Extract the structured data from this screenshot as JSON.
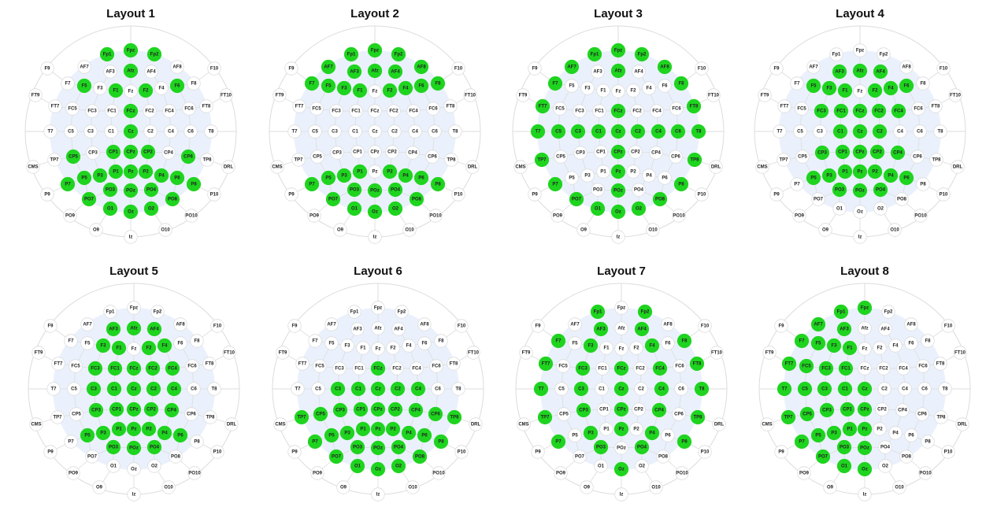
{
  "colors": {
    "active": "#1fd41f",
    "inactive": "#ffffff",
    "cap_fill": "#eaf1fc",
    "line": "#dcdcdc"
  },
  "electrodes": [
    "Fp1",
    "Fpz",
    "Fp2",
    "AF7",
    "AF3",
    "Afz",
    "AF4",
    "AF8",
    "F9",
    "F7",
    "F5",
    "F3",
    "F1",
    "Fz",
    "F2",
    "F4",
    "F6",
    "F8",
    "F10",
    "FT9",
    "FT7",
    "FC5",
    "FC3",
    "FC1",
    "FCz",
    "FC2",
    "FC4",
    "FC6",
    "FT8",
    "FT10",
    "T7",
    "C5",
    "C3",
    "C1",
    "Cz",
    "C2",
    "C4",
    "C6",
    "T8",
    "CMS",
    "TP7",
    "CP5",
    "CP3",
    "CP1",
    "CPz",
    "CP2",
    "CP4",
    "CP6",
    "TP8",
    "DRL",
    "P9",
    "P7",
    "P5",
    "P3",
    "P1",
    "Pz",
    "P2",
    "P4",
    "P6",
    "P8",
    "P10",
    "PO9",
    "PO7",
    "PO3",
    "POz",
    "PO4",
    "PO8",
    "PO10",
    "O9",
    "O1",
    "Oz",
    "O2",
    "O10",
    "Iz"
  ],
  "layouts": [
    {
      "title": "Layout 1",
      "active": [
        "Fp1",
        "Fpz",
        "Fp2",
        "Afz",
        "F5",
        "F1",
        "F2",
        "F6",
        "FCz",
        "Cz",
        "CP5",
        "CP1",
        "CPz",
        "CP2",
        "CP6",
        "P7",
        "P5",
        "P3",
        "P1",
        "Pz",
        "P2",
        "P4",
        "P6",
        "P8",
        "PO7",
        "PO3",
        "POz",
        "PO4",
        "PO8",
        "O1",
        "Oz",
        "O2"
      ]
    },
    {
      "title": "Layout 2",
      "active": [
        "Fp1",
        "Fpz",
        "Fp2",
        "AF7",
        "AF3",
        "Afz",
        "AF4",
        "AF8",
        "F7",
        "F5",
        "F3",
        "F1",
        "F2",
        "F4",
        "F6",
        "F8",
        "P7",
        "P5",
        "P3",
        "P1",
        "P2",
        "P4",
        "P6",
        "P8",
        "PO7",
        "PO3",
        "POz",
        "PO4",
        "PO8",
        "O1",
        "Oz",
        "O2"
      ]
    },
    {
      "title": "Layout 3",
      "active": [
        "Fp1",
        "Fpz",
        "Fp2",
        "AF7",
        "Afz",
        "AF8",
        "F7",
        "F8",
        "FT7",
        "FCz",
        "FT8",
        "T7",
        "C5",
        "C3",
        "C1",
        "Cz",
        "C2",
        "C4",
        "C6",
        "T8",
        "TP7",
        "CPz",
        "TP8",
        "P7",
        "Pz",
        "P8",
        "PO7",
        "POz",
        "PO8",
        "O1",
        "Oz",
        "O2"
      ]
    },
    {
      "title": "Layout 4",
      "active": [
        "AF3",
        "Afz",
        "AF4",
        "F5",
        "F3",
        "F1",
        "F2",
        "F4",
        "F6",
        "FC3",
        "FC1",
        "FCz",
        "FC2",
        "FC4",
        "C1",
        "Cz",
        "C2",
        "CP3",
        "CP1",
        "CPz",
        "CP2",
        "CP4",
        "P5",
        "P3",
        "P1",
        "Pz",
        "P2",
        "P4",
        "P6",
        "PO3",
        "POz",
        "PO4"
      ]
    },
    {
      "title": "Layout 5",
      "active": [
        "AF3",
        "Afz",
        "AF4",
        "F3",
        "F1",
        "F2",
        "F4",
        "FC3",
        "FC1",
        "FCz",
        "FC2",
        "FC4",
        "C3",
        "C1",
        "Cz",
        "C2",
        "C4",
        "CP3",
        "CP1",
        "CPz",
        "CP2",
        "CP4",
        "P5",
        "P3",
        "P1",
        "Pz",
        "P2",
        "P4",
        "P6",
        "PO3",
        "POz",
        "PO4"
      ]
    },
    {
      "title": "Layout 6",
      "active": [
        "FCz",
        "C3",
        "C1",
        "Cz",
        "C2",
        "C4",
        "TP7",
        "CP5",
        "CP3",
        "CP1",
        "CPz",
        "CP2",
        "CP4",
        "CP6",
        "TP8",
        "P7",
        "P5",
        "P3",
        "P1",
        "Pz",
        "P2",
        "P4",
        "P6",
        "P8",
        "PO7",
        "PO3",
        "POz",
        "PO4",
        "PO8",
        "O1",
        "Oz",
        "O2"
      ]
    },
    {
      "title": "Layout 7",
      "active": [
        "Fp1",
        "Fp2",
        "AF3",
        "AF4",
        "F7",
        "F3",
        "F4",
        "F8",
        "FT7",
        "FC3",
        "FCz",
        "FC4",
        "FT8",
        "T7",
        "C3",
        "Cz",
        "C4",
        "T8",
        "TP7",
        "CP3",
        "CPz",
        "CP4",
        "TP8",
        "P7",
        "P3",
        "Pz",
        "P4",
        "P8",
        "PO3",
        "PO4",
        "Oz"
      ]
    },
    {
      "title": "Layout 8",
      "active": [
        "Fp1",
        "Fpz",
        "AF7",
        "AF3",
        "F7",
        "F5",
        "F3",
        "F1",
        "FT7",
        "FC5",
        "FC3",
        "FC1",
        "T7",
        "C5",
        "C3",
        "C1",
        "Cz",
        "TP7",
        "CP5",
        "CP3",
        "CP1",
        "CPz",
        "P7",
        "P5",
        "P3",
        "P1",
        "Pz",
        "PO7",
        "PO3",
        "POz",
        "O1",
        "Oz"
      ]
    }
  ]
}
